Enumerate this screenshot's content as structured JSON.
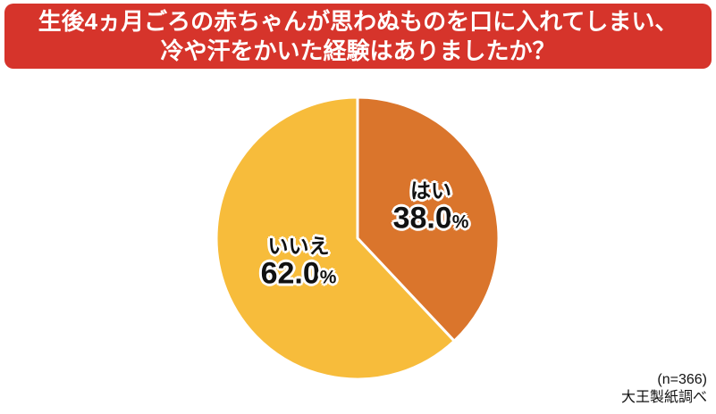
{
  "title": {
    "line1": "生後4ヵ月ごろの赤ちゃんが思わぬものを口に入れてしまい、",
    "line2": "冷や汗をかいた経験はありましたか？"
  },
  "chart_data": {
    "type": "pie",
    "title": "生後4ヵ月ごろの赤ちゃんが思わぬものを口に入れてしまい、冷や汗をかいた経験はありましたか？",
    "categories": [
      "はい",
      "いいえ"
    ],
    "values": [
      38.0,
      62.0
    ],
    "slices": [
      {
        "label": "はい",
        "value": 38.0,
        "display": "38.0",
        "unit": "%",
        "color": "#DA752C"
      },
      {
        "label": "いいえ",
        "value": 62.0,
        "display": "62.0",
        "unit": "%",
        "color": "#F7BC3B"
      }
    ],
    "start_angle_deg": 0,
    "direction": "clockwise",
    "separator_color": "#FFFFFF",
    "label_position": "inside",
    "legend": "none"
  },
  "footnote": {
    "sample_size": "(n=366)",
    "source": "大王製紙調べ"
  },
  "colors": {
    "banner_background": "#D6342B",
    "banner_text": "#FFFFFF",
    "slice_yes": "#DA752C",
    "slice_no": "#F7BC3B",
    "label_text": "#111111",
    "page_background": "#FFFFFF"
  }
}
